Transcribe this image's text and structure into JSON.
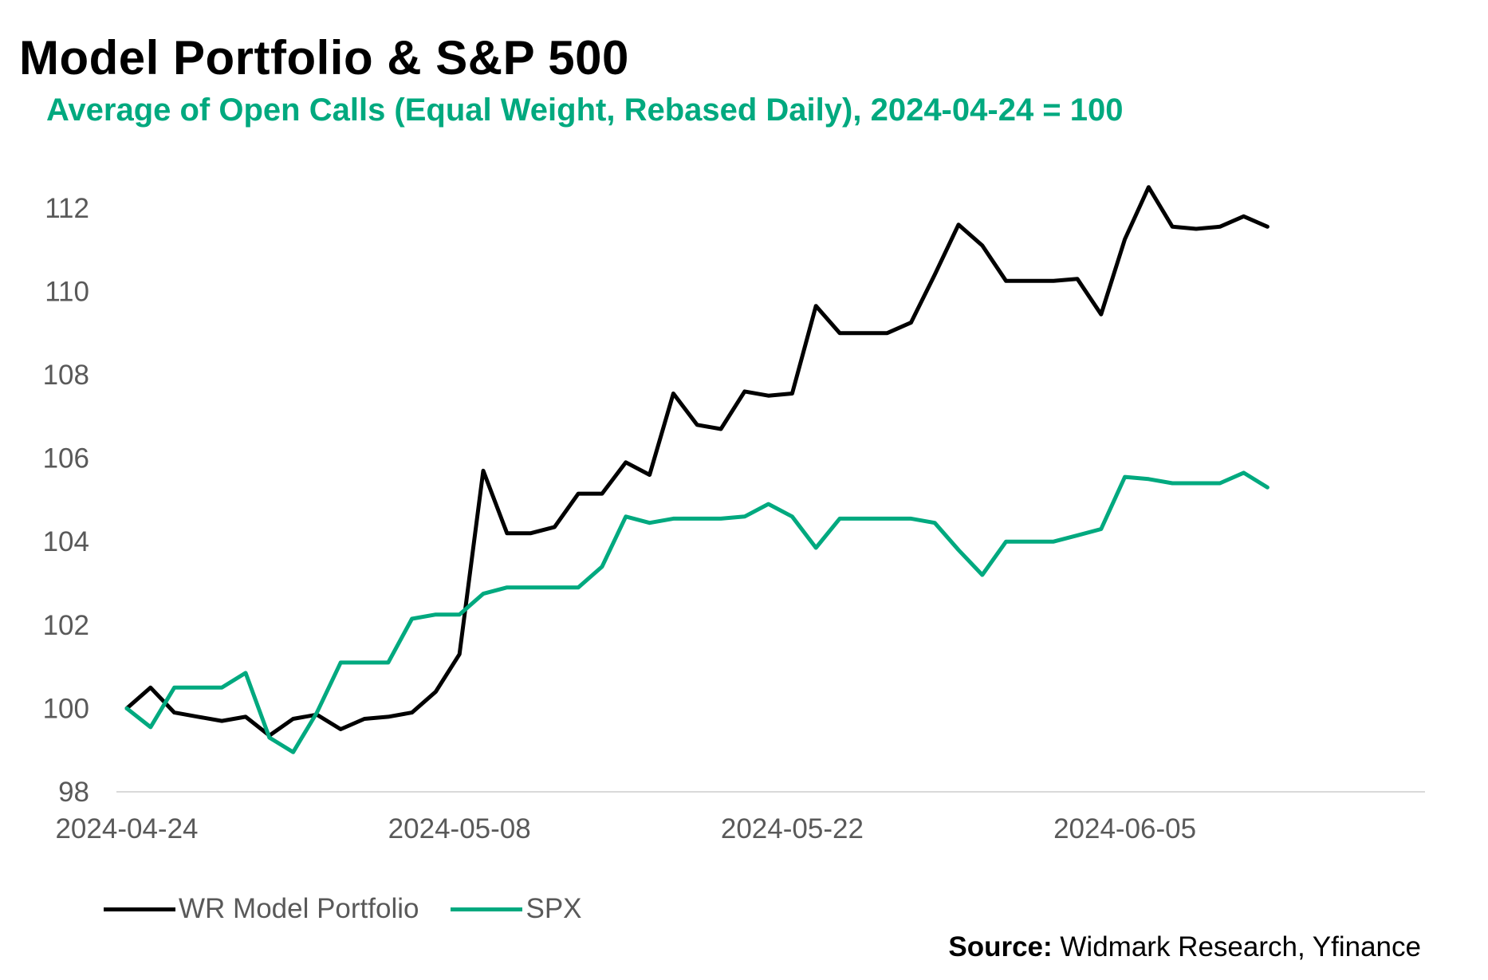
{
  "header": {
    "title": "Model Portfolio & S&P 500",
    "subtitle": "Average of Open Calls (Equal Weight, Rebased Daily), 2024-04-24 = 100"
  },
  "footer": {
    "source_label": "Source:",
    "source_text": " Widmark Research, Yfinance"
  },
  "chart_data": {
    "type": "line",
    "title": "Model Portfolio & S&P 500",
    "subtitle": "Average of Open Calls (Equal Weight, Rebased Daily), 2024-04-24 = 100",
    "x_tick_labels": [
      "2024-04-24",
      "2024-05-08",
      "2024-05-22",
      "2024-06-05"
    ],
    "x_tick_index": [
      0,
      14,
      28,
      42
    ],
    "x_max_index": 54,
    "y_ticks": [
      98,
      100,
      102,
      104,
      106,
      108,
      110,
      112
    ],
    "ylim": [
      98,
      113
    ],
    "grid": false,
    "legend_position": "bottom-left",
    "series": [
      {
        "name": "WR Model Portfolio",
        "color": "#000000",
        "values": [
          100,
          100.5,
          99.9,
          99.8,
          99.7,
          99.8,
          99.35,
          99.75,
          99.85,
          99.5,
          99.75,
          99.8,
          99.9,
          100.4,
          101.3,
          105.7,
          104.2,
          104.2,
          104.35,
          105.15,
          105.15,
          105.9,
          105.6,
          107.55,
          106.8,
          106.7,
          107.6,
          107.5,
          107.55,
          109.65,
          109.0,
          109.0,
          109.0,
          109.25,
          110.4,
          111.6,
          111.1,
          110.25,
          110.25,
          110.25,
          110.3,
          109.45,
          111.25,
          112.5,
          111.55,
          111.5,
          111.55,
          111.8,
          111.55
        ]
      },
      {
        "name": "SPX",
        "color": "#00a97f",
        "values": [
          100,
          99.55,
          100.5,
          100.5,
          100.5,
          100.85,
          99.3,
          98.95,
          99.9,
          101.1,
          101.1,
          101.1,
          102.15,
          102.25,
          102.25,
          102.75,
          102.9,
          102.9,
          102.9,
          102.9,
          103.4,
          104.6,
          104.45,
          104.55,
          104.55,
          104.55,
          104.6,
          104.9,
          104.6,
          103.85,
          104.55,
          104.55,
          104.55,
          104.55,
          104.45,
          103.8,
          103.2,
          104.0,
          104.0,
          104.0,
          104.15,
          104.3,
          105.55,
          105.5,
          105.4,
          105.4,
          105.4,
          105.65,
          105.3
        ]
      }
    ]
  }
}
